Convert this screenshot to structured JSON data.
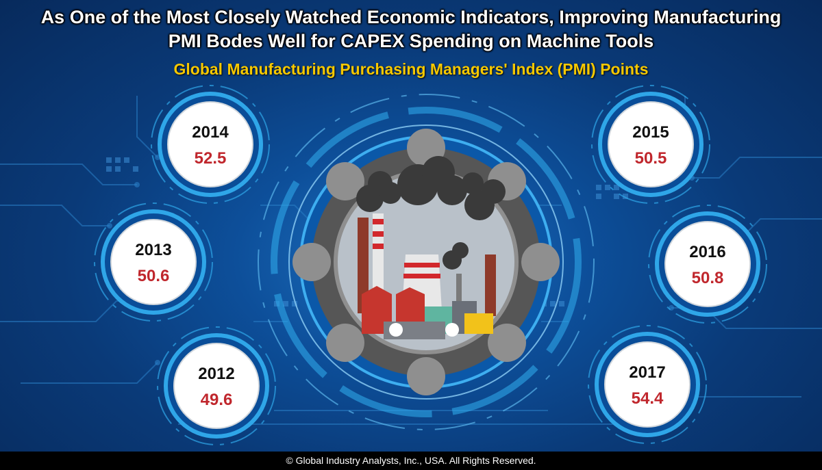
{
  "header": {
    "title_line_1": "As One of the Most Closely Watched Economic Indicators, Improving Manufacturing",
    "title_line_2": "PMI Bodes Well for CAPEX Spending on Machine Tools",
    "subtitle": "Global Manufacturing Purchasing Managers' Index (PMI) Points"
  },
  "footer": {
    "copyright": "© Global Industry Analysts, Inc., USA. All Rights Reserved."
  },
  "colors": {
    "year_text": "#111111",
    "value_text": "#c0272d",
    "subtitle": "#f6c800",
    "ring": "#2fa6e8",
    "background": "#0d4f9a"
  },
  "icons": {
    "center": "factory-smokestacks-icon"
  },
  "chart_data": {
    "type": "table",
    "title": "Global Manufacturing Purchasing Managers' Index (PMI) Points",
    "categories": [
      "2012",
      "2013",
      "2014",
      "2015",
      "2016",
      "2017"
    ],
    "values": [
      49.6,
      50.6,
      52.5,
      50.5,
      50.8,
      54.4
    ],
    "labels": [
      "49.6",
      "50.6",
      "52.5",
      "50.5",
      "50.8",
      "54.4"
    ]
  }
}
